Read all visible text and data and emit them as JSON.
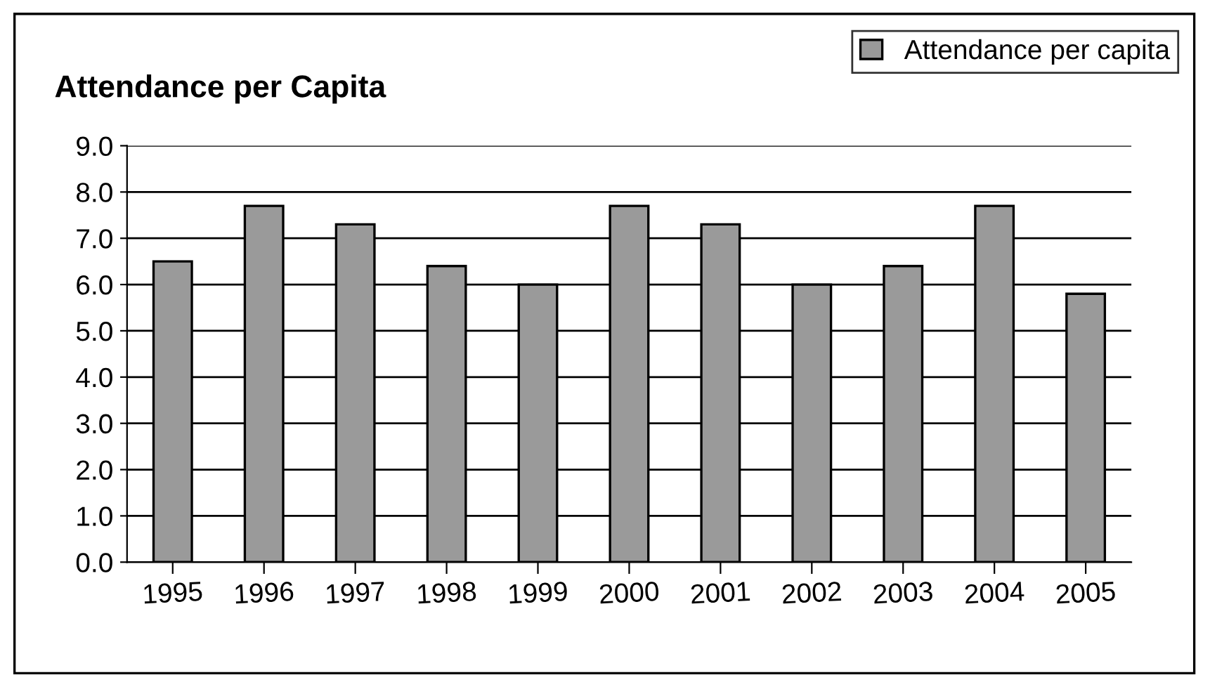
{
  "chart_data": {
    "type": "bar",
    "title": "Attendance per Capita",
    "categories": [
      "1995",
      "1996",
      "1997",
      "1998",
      "1999",
      "2000",
      "2001",
      "2002",
      "2003",
      "2004",
      "2005"
    ],
    "series": [
      {
        "name": "Attendance per capita",
        "color": "#9a9a9a",
        "values": [
          6.5,
          7.7,
          7.3,
          6.4,
          6.0,
          7.7,
          7.3,
          6.0,
          6.4,
          7.7,
          5.8
        ]
      }
    ],
    "ylim": [
      0,
      9
    ],
    "yticks": [
      {
        "value": 0,
        "label": "0.0"
      },
      {
        "value": 1,
        "label": "1.0"
      },
      {
        "value": 2,
        "label": "2.0"
      },
      {
        "value": 3,
        "label": "3.0"
      },
      {
        "value": 4,
        "label": "4.0"
      },
      {
        "value": 5,
        "label": "5.0"
      },
      {
        "value": 6,
        "label": "6.0"
      },
      {
        "value": 7,
        "label": "7.0"
      },
      {
        "value": 8,
        "label": "8.0"
      },
      {
        "value": 9,
        "label": "9.0"
      }
    ],
    "grid": "y",
    "legend": "top right"
  }
}
